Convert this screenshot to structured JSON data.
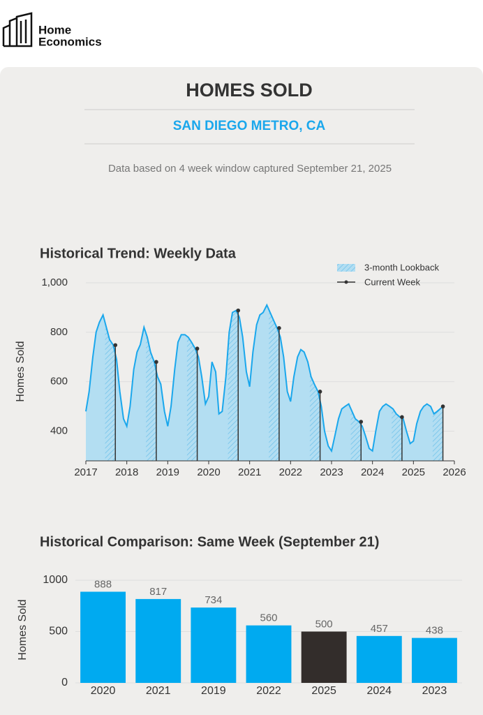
{
  "header": {
    "brand": [
      "Home",
      "Economics"
    ],
    "title": "HOMES SOLD",
    "subtitle": "SAN DIEGO METRO, CA",
    "note": "Data based on 4 week window captured September 21, 2025"
  },
  "chart_data": [
    {
      "type": "line",
      "title": "Historical Trend: Weekly Data",
      "ylabel": "Homes Sold",
      "xlim": [
        2017,
        2026
      ],
      "xticks": [
        2017,
        2018,
        2019,
        2020,
        2021,
        2022,
        2023,
        2024,
        2025,
        2026
      ],
      "ylim": [
        280,
        1000
      ],
      "yticks": [
        400,
        600,
        800,
        {
          "value": 1000,
          "label": "1,000"
        }
      ],
      "grid": true,
      "legend": "upper right",
      "series": [
        {
          "color": "#1aa7ec",
          "fill": "#b3def2",
          "x": [
            2017,
            2017.08,
            2017.17,
            2017.25,
            2017.33,
            2017.42,
            2017.5,
            2017.58,
            2017.67,
            2017.75,
            2017.83,
            2017.92,
            2018,
            2018.08,
            2018.17,
            2018.25,
            2018.33,
            2018.42,
            2018.5,
            2018.58,
            2018.67,
            2018.75,
            2018.83,
            2018.92,
            2019,
            2019.08,
            2019.17,
            2019.25,
            2019.33,
            2019.42,
            2019.5,
            2019.58,
            2019.67,
            2019.75,
            2019.83,
            2019.92,
            2020,
            2020.08,
            2020.17,
            2020.25,
            2020.33,
            2020.42,
            2020.5,
            2020.58,
            2020.67,
            2020.75,
            2020.83,
            2020.92,
            2021,
            2021.08,
            2021.17,
            2021.25,
            2021.33,
            2021.42,
            2021.5,
            2021.58,
            2021.67,
            2021.75,
            2021.83,
            2021.92,
            2022,
            2022.08,
            2022.17,
            2022.25,
            2022.33,
            2022.42,
            2022.5,
            2022.58,
            2022.67,
            2022.75,
            2022.83,
            2022.92,
            2023,
            2023.08,
            2023.17,
            2023.25,
            2023.33,
            2023.42,
            2023.5,
            2023.58,
            2023.67,
            2023.75,
            2023.83,
            2023.92,
            2024,
            2024.08,
            2024.17,
            2024.25,
            2024.33,
            2024.42,
            2024.5,
            2024.58,
            2024.67,
            2024.75,
            2024.83,
            2024.92,
            2025,
            2025.08,
            2025.17,
            2025.25,
            2025.33,
            2025.42,
            2025.5,
            2025.58,
            2025.72
          ],
          "values": [
            480,
            560,
            700,
            800,
            840,
            870,
            820,
            770,
            748,
            690,
            560,
            450,
            420,
            500,
            650,
            720,
            750,
            820,
            780,
            720,
            680,
            620,
            590,
            480,
            420,
            500,
            650,
            760,
            790,
            790,
            780,
            760,
            734,
            700,
            620,
            510,
            540,
            680,
            640,
            470,
            480,
            620,
            800,
            880,
            888,
            860,
            780,
            640,
            580,
            720,
            830,
            870,
            880,
            910,
            880,
            850,
            817,
            780,
            700,
            560,
            520,
            620,
            700,
            730,
            720,
            680,
            620,
            590,
            560,
            500,
            400,
            340,
            320,
            380,
            450,
            490,
            500,
            510,
            480,
            450,
            438,
            420,
            380,
            330,
            320,
            400,
            480,
            500,
            510,
            500,
            490,
            470,
            457,
            450,
            400,
            350,
            360,
            430,
            480,
            500,
            510,
            500,
            470,
            480,
            500
          ]
        }
      ],
      "lookback": {
        "name": "3-month Lookback",
        "color": "#7fc8ec",
        "x0": [
          2017.47,
          2018.47,
          2019.47,
          2020.47,
          2021.47,
          2022.47,
          2023.47,
          2024.47,
          2025.47
        ],
        "x1": [
          2017.72,
          2018.72,
          2019.72,
          2020.72,
          2021.72,
          2022.72,
          2023.72,
          2024.72,
          2025.72
        ]
      },
      "current": {
        "name": "Current Week",
        "color": "#333333",
        "x": [
          2017.72,
          2018.72,
          2019.72,
          2020.72,
          2021.72,
          2022.72,
          2023.72,
          2024.72,
          2025.72
        ],
        "values": [
          748,
          680,
          734,
          888,
          817,
          560,
          438,
          457,
          500
        ]
      }
    },
    {
      "type": "bar",
      "title": "Historical Comparison: Same Week (September 21)",
      "ylabel": "Homes Sold",
      "categories": [
        "2020",
        "2021",
        "2019",
        "2022",
        "2025",
        "2024",
        "2023"
      ],
      "values": [
        888,
        817,
        734,
        560,
        500,
        457,
        438
      ],
      "colors": [
        "#00aaf0",
        "#00aaf0",
        "#00aaf0",
        "#00aaf0",
        "#332d2b",
        "#00aaf0",
        "#00aaf0"
      ],
      "ylim": [
        0,
        1000
      ],
      "yticks": [
        0,
        500,
        1000
      ],
      "grid": true
    }
  ]
}
